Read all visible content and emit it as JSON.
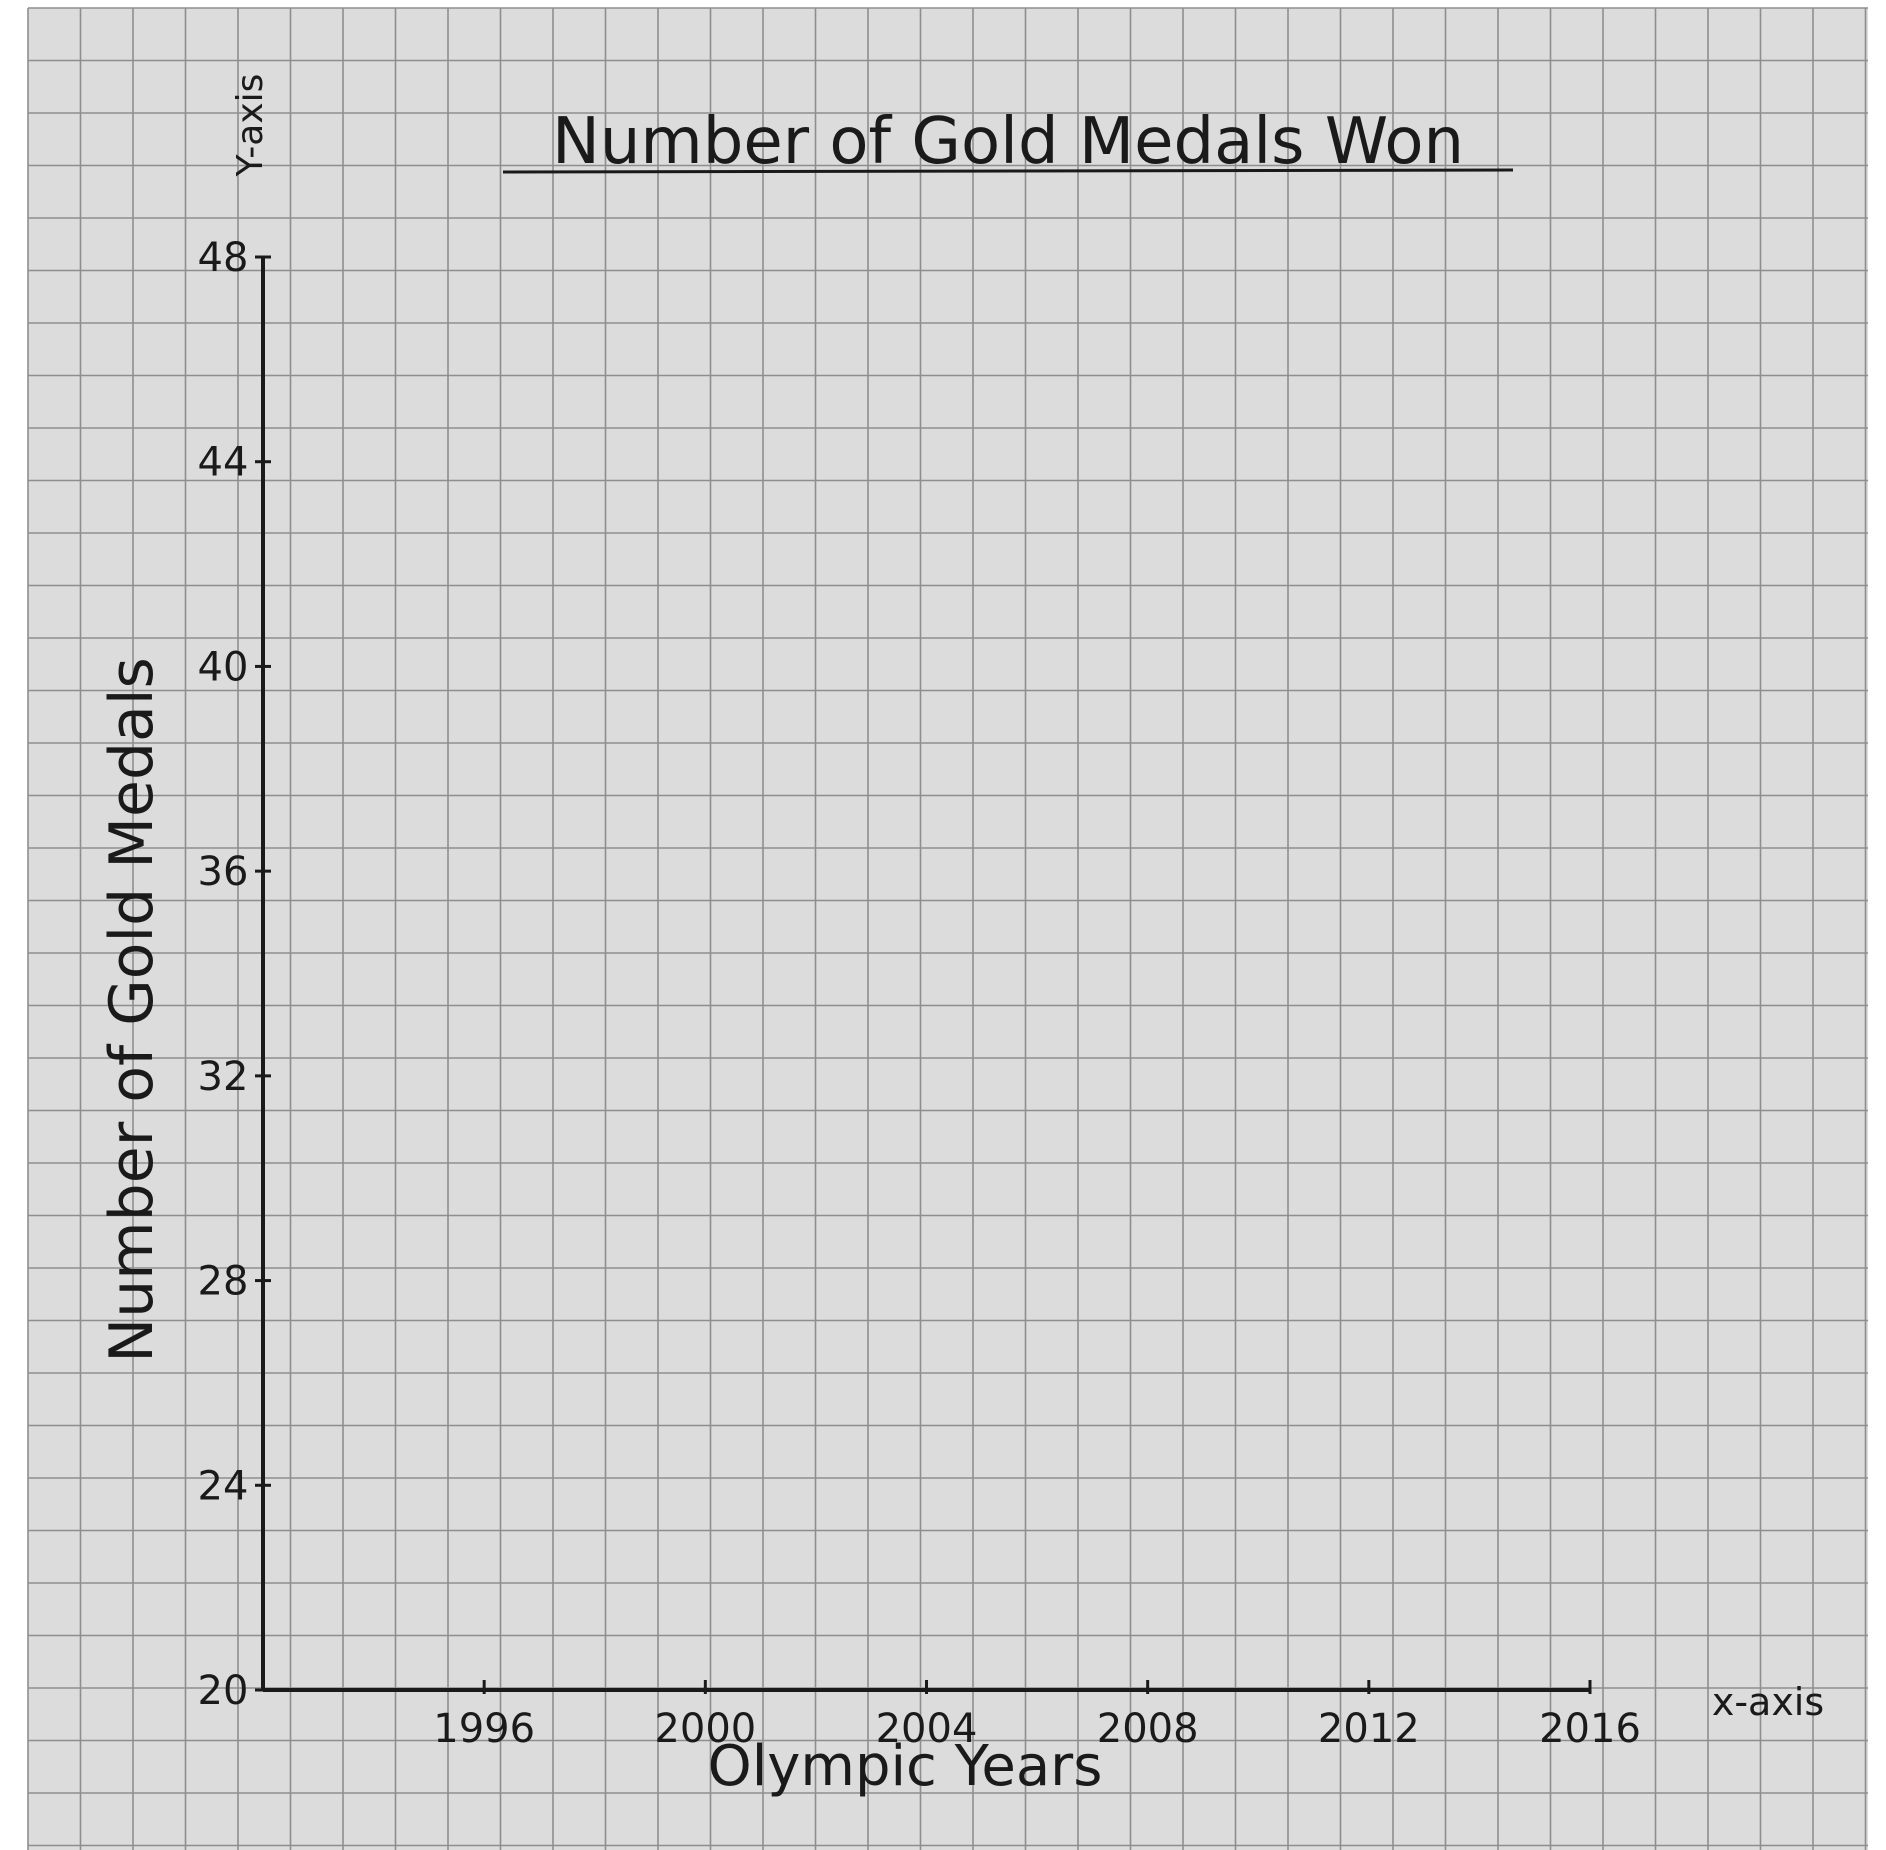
{
  "chart_data": {
    "type": "line",
    "title": "Number of Gold Medals Won",
    "xlabel": "Olympic Years",
    "ylabel": "Number of Gold Medals",
    "x_axis_tag": "x-axis",
    "y_axis_tag": "Y-axis",
    "x_ticks": [
      "1996",
      "2000",
      "2004",
      "2008",
      "2012",
      "2016"
    ],
    "y_ticks": [
      "20",
      "24",
      "28",
      "32",
      "36",
      "40",
      "44",
      "48"
    ],
    "xlim": [
      1992,
      2016
    ],
    "ylim": [
      20,
      48
    ],
    "series": [],
    "grid": true,
    "colors": {
      "paper": "#dcdcdc",
      "grid": "#8e8e8e",
      "ink": "#1a1a1a"
    }
  }
}
